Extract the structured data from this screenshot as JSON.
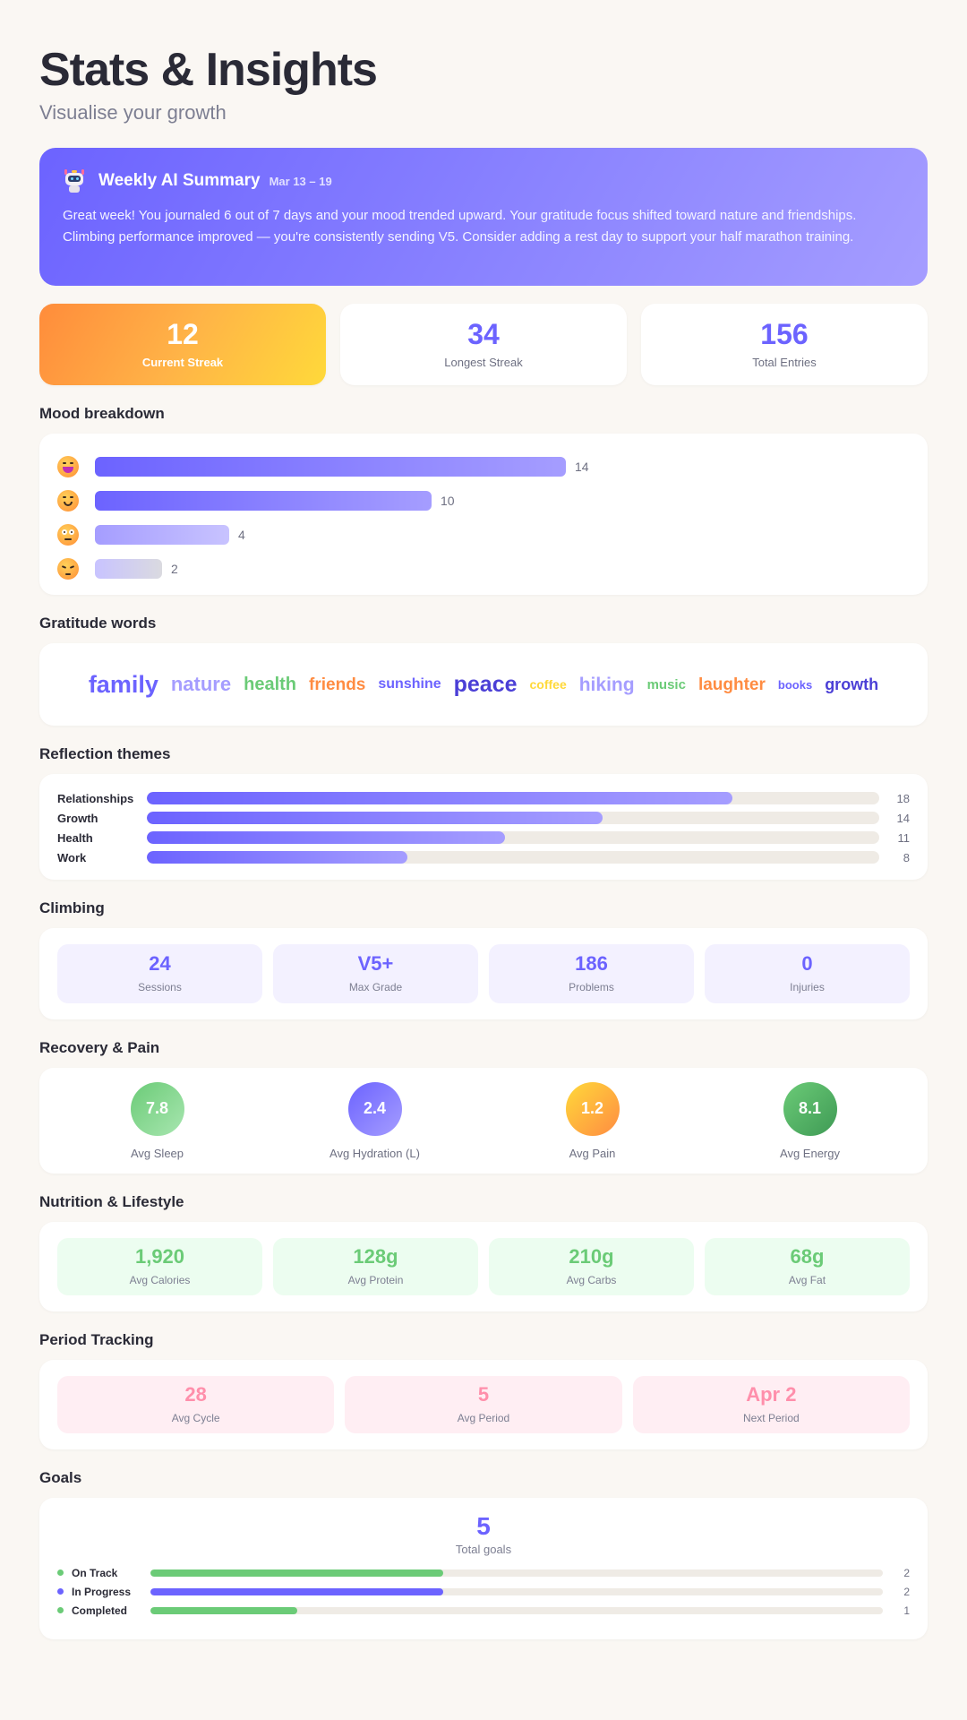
{
  "header": {
    "title": "Stats & Insights",
    "subtitle": "Visualise your growth"
  },
  "ai_summary": {
    "icon": "robot-icon",
    "title": "Weekly AI Summary",
    "date_range": "Mar 13 – 19",
    "text": "Great week! You journaled 6 out of 7 days and your mood trended upward. Your gratitude focus shifted toward nature and friendships. Climbing performance improved — you're consistently sending V5. Consider adding a rest day to support your half marathon training."
  },
  "streaks": [
    {
      "value": "12",
      "label": "Current Streak"
    },
    {
      "value": "34",
      "label": "Longest Streak"
    },
    {
      "value": "156",
      "label": "Total Entries"
    }
  ],
  "mood": {
    "title": "Mood breakdown",
    "max": 14,
    "items": [
      {
        "emoji": "grinning-face-icon",
        "value": 14,
        "display": "14",
        "gradient": [
          "#6c63ff",
          "#a59dff"
        ]
      },
      {
        "emoji": "smiling-face-icon",
        "value": 10,
        "display": "10",
        "gradient": [
          "#6c63ff",
          "#a59dff"
        ]
      },
      {
        "emoji": "neutral-face-icon",
        "value": 4,
        "display": "4",
        "gradient": [
          "#a59dff",
          "#c8c3ff"
        ]
      },
      {
        "emoji": "pensive-face-icon",
        "value": 2,
        "display": "2",
        "gradient": [
          "#c8c3ff",
          "#dadae0"
        ]
      }
    ]
  },
  "gratitude": {
    "title": "Gratitude words",
    "words": [
      {
        "text": "family",
        "size": 27,
        "color": "#6c63ff"
      },
      {
        "text": "nature",
        "size": 22,
        "color": "#a59dff"
      },
      {
        "text": "health",
        "size": 20,
        "color": "#6bcb77"
      },
      {
        "text": "friends",
        "size": 19,
        "color": "#ff8c42"
      },
      {
        "text": "sunshine",
        "size": 16,
        "color": "#6c63ff"
      },
      {
        "text": "peace",
        "size": 25,
        "color": "#4b3fd6"
      },
      {
        "text": "coffee",
        "size": 14,
        "color": "#ffd93a"
      },
      {
        "text": "hiking",
        "size": 21,
        "color": "#a59dff"
      },
      {
        "text": "music",
        "size": 15,
        "color": "#6bcb77"
      },
      {
        "text": "laughter",
        "size": 19,
        "color": "#ff8c42"
      },
      {
        "text": "books",
        "size": 13,
        "color": "#6c63ff"
      },
      {
        "text": "growth",
        "size": 18,
        "color": "#4b3fd6"
      }
    ]
  },
  "themes": {
    "title": "Reflection themes",
    "max": 22.5,
    "items": [
      {
        "label": "Relationships",
        "value": 18,
        "display": "18"
      },
      {
        "label": "Growth",
        "value": 14,
        "display": "14"
      },
      {
        "label": "Health",
        "value": 11,
        "display": "11"
      },
      {
        "label": "Work",
        "value": 8,
        "display": "8"
      }
    ]
  },
  "climbing": {
    "title": "Climbing",
    "items": [
      {
        "value": "24",
        "label": "Sessions"
      },
      {
        "value": "V5+",
        "label": "Max Grade"
      },
      {
        "value": "186",
        "label": "Problems"
      },
      {
        "value": "0",
        "label": "Injuries"
      }
    ]
  },
  "recovery": {
    "title": "Recovery & Pain",
    "items": [
      {
        "value": "7.8",
        "label": "Avg Sleep",
        "gradient": [
          "#6bcb77",
          "#a8e6b0"
        ]
      },
      {
        "value": "2.4",
        "label": "Avg Hydration (L)",
        "gradient": [
          "#6c63ff",
          "#a59dff"
        ]
      },
      {
        "value": "1.2",
        "label": "Avg Pain",
        "gradient": [
          "#ffd93a",
          "#ff8c42"
        ]
      },
      {
        "value": "8.1",
        "label": "Avg Energy",
        "gradient": [
          "#6bcb77",
          "#3f9a55"
        ]
      }
    ]
  },
  "nutrition": {
    "title": "Nutrition & Lifestyle",
    "items": [
      {
        "value": "1,920",
        "label": "Avg Calories"
      },
      {
        "value": "128g",
        "label": "Avg Protein"
      },
      {
        "value": "210g",
        "label": "Avg Carbs"
      },
      {
        "value": "68g",
        "label": "Avg Fat"
      }
    ]
  },
  "period": {
    "title": "Period Tracking",
    "items": [
      {
        "value": "28",
        "label": "Avg Cycle"
      },
      {
        "value": "5",
        "label": "Avg Period"
      },
      {
        "value": "Apr 2",
        "label": "Next Period"
      }
    ]
  },
  "goals": {
    "title": "Goals",
    "total": "5",
    "total_label": "Total goals",
    "max": 5,
    "items": [
      {
        "label": "On Track",
        "value": 2,
        "display": "2",
        "color": "#6bcb77"
      },
      {
        "label": "In Progress",
        "value": 2,
        "display": "2",
        "color": "#6c63ff"
      },
      {
        "label": "Completed",
        "value": 1,
        "display": "1",
        "color": "#6bcb77"
      }
    ]
  },
  "colors": {
    "accent": "#6c63ff",
    "green": "#6bcb77",
    "orange": "#ff8c42",
    "yellow": "#ffd93a",
    "pink": "#ff8fab",
    "background": "#faf7f3"
  }
}
